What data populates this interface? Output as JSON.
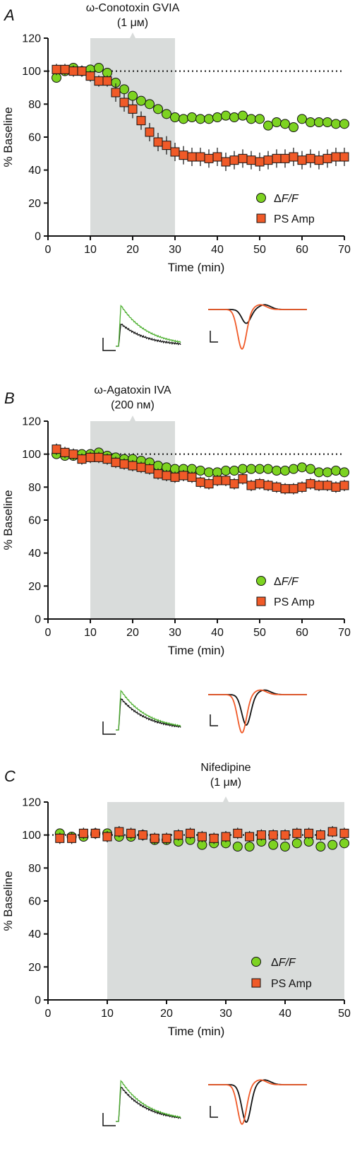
{
  "chart_data": [
    {
      "type": "scatter",
      "panel": "A",
      "drug": "ω-Conotoxin GVIA",
      "dose": "(1 μм)",
      "xlabel": "Time (min)",
      "ylabel": "% Baseline",
      "xlim": [
        0,
        70
      ],
      "ylim": [
        0,
        120
      ],
      "xticks": [
        "0",
        "10",
        "20",
        "30",
        "40",
        "50",
        "60",
        "70"
      ],
      "yticks": [
        "0",
        "20",
        "40",
        "60",
        "80",
        "100",
        "120"
      ],
      "baseline": 100,
      "application": [
        10,
        30
      ],
      "legend": [
        "ΔF/F",
        "PS Amp"
      ],
      "series": [
        {
          "name": "ΔF/F",
          "color": "#7dd321",
          "marker": "circle",
          "x": [
            2,
            4,
            6,
            8,
            10,
            12,
            14,
            16,
            18,
            20,
            22,
            24,
            26,
            28,
            30,
            32,
            34,
            36,
            38,
            40,
            42,
            44,
            46,
            48,
            50,
            52,
            54,
            56,
            58,
            60,
            62,
            64,
            66,
            68,
            70
          ],
          "y": [
            96,
            100,
            102,
            100,
            101,
            102,
            99,
            93,
            89,
            85,
            82,
            80,
            77,
            74,
            72,
            71,
            72,
            71,
            71,
            72,
            73,
            72,
            73,
            71,
            71,
            67,
            69,
            68,
            66,
            71,
            69,
            69,
            69,
            68,
            68
          ]
        },
        {
          "name": "PS Amp",
          "color": "#f05a28",
          "marker": "square",
          "x": [
            2,
            4,
            6,
            8,
            10,
            12,
            14,
            16,
            18,
            20,
            22,
            24,
            26,
            28,
            30,
            32,
            34,
            36,
            38,
            40,
            42,
            44,
            46,
            48,
            50,
            52,
            54,
            56,
            58,
            60,
            62,
            64,
            66,
            68,
            70
          ],
          "y": [
            101,
            101,
            100,
            100,
            97,
            94,
            94,
            87,
            81,
            77,
            70,
            63,
            57,
            55,
            51,
            49,
            48,
            48,
            47,
            48,
            45,
            46,
            47,
            46,
            45,
            46,
            47,
            47,
            48,
            46,
            47,
            46,
            47,
            48,
            48
          ]
        }
      ]
    },
    {
      "type": "scatter",
      "panel": "B",
      "drug": "ω-Agatoxin IVA",
      "dose": "(200 nм)",
      "xlabel": "Time (min)",
      "ylabel": "% Baseline",
      "xlim": [
        0,
        70
      ],
      "ylim": [
        0,
        120
      ],
      "xticks": [
        "0",
        "10",
        "20",
        "30",
        "40",
        "50",
        "60",
        "70"
      ],
      "yticks": [
        "0",
        "20",
        "40",
        "60",
        "80",
        "100",
        "120"
      ],
      "baseline": 100,
      "application": [
        10,
        30
      ],
      "legend": [
        "ΔF/F",
        "PS Amp"
      ],
      "series": [
        {
          "name": "ΔF/F",
          "color": "#7dd321",
          "marker": "circle",
          "x": [
            2,
            4,
            6,
            8,
            10,
            12,
            14,
            16,
            18,
            20,
            22,
            24,
            26,
            28,
            30,
            32,
            34,
            36,
            38,
            40,
            42,
            44,
            46,
            48,
            50,
            52,
            54,
            56,
            58,
            60,
            62,
            64,
            66,
            68,
            70
          ],
          "y": [
            100,
            99,
            99,
            100,
            100,
            101,
            99,
            98,
            97,
            97,
            96,
            95,
            93,
            92,
            91,
            91,
            91,
            90,
            89,
            89,
            90,
            90,
            91,
            91,
            91,
            91,
            90,
            90,
            91,
            92,
            91,
            89,
            89,
            90,
            89
          ]
        },
        {
          "name": "PS Amp",
          "color": "#f05a28",
          "marker": "square",
          "x": [
            2,
            4,
            6,
            8,
            10,
            12,
            14,
            16,
            18,
            20,
            22,
            24,
            26,
            28,
            30,
            32,
            34,
            36,
            38,
            40,
            42,
            44,
            46,
            48,
            50,
            52,
            54,
            56,
            58,
            60,
            62,
            64,
            66,
            68,
            70
          ],
          "y": [
            103,
            101,
            100,
            97,
            98,
            98,
            97,
            95,
            94,
            93,
            92,
            91,
            88,
            87,
            86,
            87,
            86,
            83,
            82,
            84,
            84,
            82,
            85,
            81,
            82,
            81,
            80,
            79,
            79,
            80,
            82,
            81,
            81,
            80,
            81
          ]
        }
      ]
    },
    {
      "type": "scatter",
      "panel": "C",
      "drug": "Nifedipine",
      "dose": "(1 μм)",
      "xlabel": "Time (min)",
      "ylabel": "% Baseline",
      "xlim": [
        0,
        50
      ],
      "ylim": [
        0,
        120
      ],
      "xticks": [
        "0",
        "10",
        "20",
        "30",
        "40",
        "50"
      ],
      "yticks": [
        "0",
        "20",
        "40",
        "60",
        "80",
        "100",
        "120"
      ],
      "baseline": 100,
      "application": [
        10,
        50
      ],
      "legend": [
        "ΔF/F",
        "PS Amp"
      ],
      "series": [
        {
          "name": "ΔF/F",
          "color": "#7dd321",
          "marker": "circle",
          "x": [
            2,
            4,
            6,
            8,
            10,
            12,
            14,
            16,
            18,
            20,
            22,
            24,
            26,
            28,
            30,
            32,
            34,
            36,
            38,
            40,
            42,
            44,
            46,
            48,
            50
          ],
          "y": [
            101,
            99,
            99,
            101,
            101,
            99,
            99,
            100,
            97,
            97,
            96,
            97,
            94,
            95,
            95,
            93,
            93,
            96,
            94,
            93,
            95,
            96,
            93,
            94,
            95
          ]
        },
        {
          "name": "PS Amp",
          "color": "#f05a28",
          "marker": "square",
          "x": [
            2,
            4,
            6,
            8,
            10,
            12,
            14,
            16,
            18,
            20,
            22,
            24,
            26,
            28,
            30,
            32,
            34,
            36,
            38,
            40,
            42,
            44,
            46,
            48,
            50
          ],
          "y": [
            98,
            98,
            101,
            101,
            99,
            102,
            101,
            100,
            98,
            98,
            100,
            101,
            99,
            98,
            99,
            101,
            99,
            100,
            100,
            100,
            101,
            101,
            100,
            102,
            101
          ]
        }
      ]
    }
  ]
}
